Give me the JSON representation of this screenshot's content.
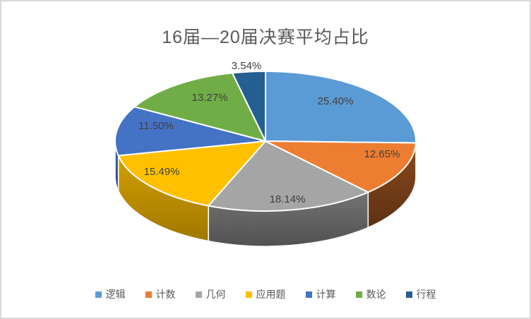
{
  "chart_data": {
    "type": "pie",
    "style": "3d",
    "title": "16届—20届决赛平均占比",
    "categories": [
      "逻辑",
      "计数",
      "几何",
      "应用题",
      "计算",
      "数论",
      "行程"
    ],
    "values": [
      25.4,
      12.65,
      18.14,
      15.49,
      11.5,
      13.27,
      3.54
    ],
    "data_labels": [
      "25.40%",
      "12.65%",
      "18.14%",
      "15.49%",
      "11.50%",
      "13.27%",
      "3.54%"
    ],
    "colors": [
      "#5B9BD5",
      "#ED7D31",
      "#A5A5A5",
      "#FFC000",
      "#4472C4",
      "#70AD47",
      "#255E91"
    ],
    "start_angle_deg": 0,
    "direction": "clockwise",
    "legend_position": "bottom",
    "title_color": "#595959",
    "label_color": "#404040",
    "legend_text_color": "#595959",
    "frame_border_color": "#D9D9D9",
    "slice_separator_color": "#FFFFFF"
  }
}
